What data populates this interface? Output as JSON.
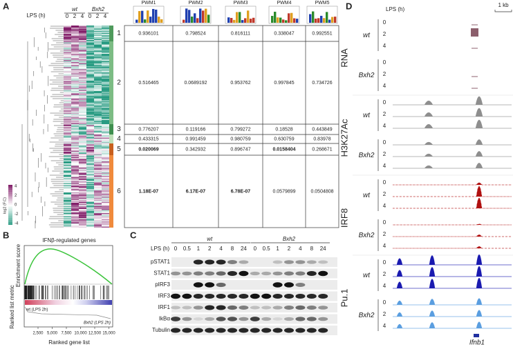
{
  "panel_a": {
    "label": "A",
    "lps": "LPS (h)",
    "groups": [
      "wt",
      "Bxh2"
    ],
    "times": [
      "0",
      "2",
      "4",
      "0",
      "2",
      "4"
    ],
    "colorbar": {
      "title": "log2 (F.C)",
      "ticks": [
        "4",
        "2",
        "0",
        "-2",
        "-4"
      ]
    },
    "table": {
      "columns": [
        "PWM1",
        "PWM2",
        "PWM3",
        "PWM4",
        "PWM5"
      ],
      "clusters": [
        "1",
        "2",
        "3",
        "4",
        "5",
        "6"
      ],
      "cluster_colors": [
        "#4f9a5c",
        "#7cbc84",
        "#3f8f4f",
        "#bfe0b8",
        "#c8601e",
        "#f08a3c"
      ],
      "rows": [
        [
          "0.936101",
          "0.798524",
          "0.816111",
          "0.338047",
          "0.992551"
        ],
        [
          "0.516465",
          "0.0689192",
          "0.953762",
          "0.997845",
          "0.734726"
        ],
        [
          "0.776207",
          "0.119166",
          "0.799272",
          "0.18528",
          "0.443849"
        ],
        [
          "0.433315",
          "0.991459",
          "0.980759",
          "0.630759",
          "0.83978"
        ],
        [
          "0.020069",
          "0.342932",
          "0.896747",
          "0.0158404",
          "0.268671"
        ],
        [
          "1.18E-07",
          "6.17E-07",
          "6.78E-07",
          "0.0579899",
          "0.0504808"
        ]
      ],
      "cell_styles": [
        [
          "plain",
          "plain",
          "plain",
          "plain",
          "plain"
        ],
        [
          "plain",
          "orange",
          "plain",
          "plain",
          "plain"
        ],
        [
          "plain",
          "plain",
          "plain",
          "plain",
          "plain"
        ],
        [
          "plain",
          "plain",
          "plain",
          "plain",
          "plain"
        ],
        [
          "bold-red",
          "plain",
          "plain",
          "bold-red",
          "plain"
        ],
        [
          "bold-red",
          "bold-red",
          "bold-red",
          "orange",
          "orange"
        ]
      ]
    }
  },
  "panel_b": {
    "label": "B",
    "title": "IFNβ-regulated genes",
    "y_label_top": "Enrichment score",
    "y_label_bottom": "Ranked list metric",
    "wt_label": "wt (LPS 2h)",
    "bxh2_label": "Bxh2 (LPS 2h)",
    "x_ticks": [
      "2,500",
      "5,000",
      "7,500",
      "10,000",
      "12,500",
      "15,000"
    ],
    "x_label": "Ranked gene list"
  },
  "panel_c": {
    "label": "C",
    "lps": "LPS (h)",
    "groups": [
      "wt",
      "Bxh2"
    ],
    "times": [
      "0",
      "0.5",
      "1",
      "2",
      "4",
      "8",
      "24",
      "0",
      "0.5",
      "1",
      "2",
      "4",
      "8",
      "24"
    ],
    "rows": [
      "pSTAT1",
      "STAT1",
      "pIRF3",
      "IRF3",
      "IRF1",
      "IkBα",
      "Tubulin"
    ]
  },
  "panel_d": {
    "label": "D",
    "lps": "LPS (h)",
    "scale": "1 kb",
    "gene": "Ifnb1",
    "tracks": [
      {
        "name": "RNA",
        "color": "#8c5f6c",
        "groups": [
          {
            "name": "wt",
            "times": [
              "0",
              "2",
              "4"
            ]
          },
          {
            "name": "Bxh2",
            "times": [
              "0",
              "2",
              "4"
            ]
          }
        ]
      },
      {
        "name": "H3K27Ac",
        "color": "#8e8e8e",
        "groups": [
          {
            "name": "wt",
            "times": [
              "0",
              "2",
              "4"
            ]
          },
          {
            "name": "Bxh2",
            "times": [
              "0",
              "2",
              "4"
            ]
          }
        ]
      },
      {
        "name": "IRF8",
        "color": "#b01010",
        "groups": [
          {
            "name": "wt",
            "times": [
              "0",
              "2",
              "4"
            ]
          },
          {
            "name": "Bxh2",
            "times": [
              "0",
              "2",
              "4"
            ]
          }
        ]
      },
      {
        "name": "Pu.1",
        "color": "#1a1ab0",
        "groups": [
          {
            "name": "wt",
            "times": [
              "0",
              "2",
              "4"
            ]
          },
          {
            "name": "Bxh2",
            "times": [
              "0",
              "2",
              "4"
            ]
          }
        ]
      }
    ]
  }
}
